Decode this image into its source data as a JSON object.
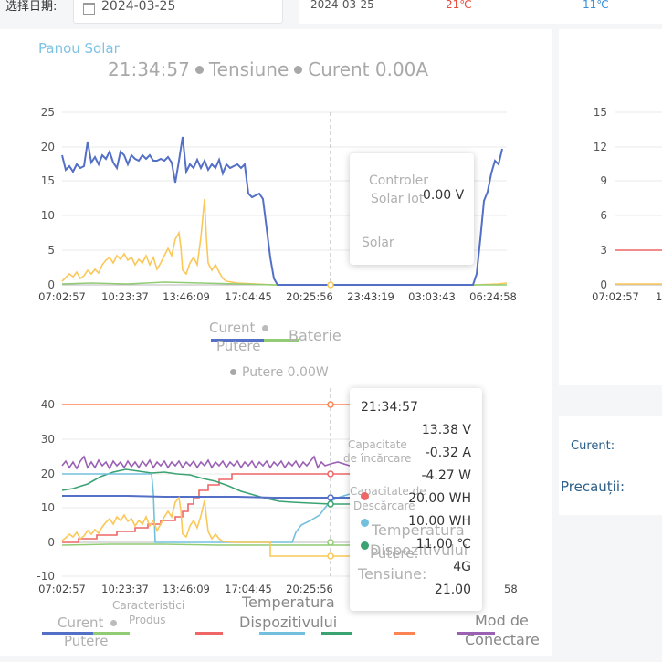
{
  "header": {
    "date_label": "选择日期:",
    "date_value": "2024-03-25",
    "summary_date": "2024-03-25",
    "temp_high": "21℃",
    "temp_low": "11℃"
  },
  "tabs": {
    "active": "Panou Solar"
  },
  "chart1": {
    "title_time": "21:34:57",
    "title_part2": "Tensiune",
    "title_part3": "Curent 0.00A",
    "y_ticks": [
      "25",
      "20",
      "15",
      "10",
      "5",
      "0"
    ],
    "x_ticks": [
      "07:02:57",
      "10:23:37",
      "13:46:09",
      "17:04:45",
      "20:25:56",
      "23:43:19",
      "03:03:43",
      "06:24:58"
    ],
    "tooltip": {
      "label1": "Controler",
      "label2": "Solar Iot",
      "value": "0.00 V",
      "label3": "Solar"
    },
    "legend": {
      "current": "Curent",
      "power": "Putere",
      "battery": "Baterie"
    },
    "power_note": "Putere 0.00W"
  },
  "chart1b": {
    "y_ticks": [
      "15",
      "12",
      "9",
      "6",
      "3",
      "0"
    ],
    "x_tick": "07:02:57",
    "x_tick_partial": "1"
  },
  "chart2": {
    "y_ticks": [
      "40",
      "30",
      "20",
      "10",
      "0",
      "-10"
    ],
    "x_ticks": [
      "07:02:57",
      "10:23:37",
      "13:46:09",
      "17:04:45",
      "20:25:56"
    ],
    "x_tick_partial": "58",
    "tooltip": {
      "time": "21:34:57",
      "voltage": "13.38 V",
      "charge_cap_label1": "Capacitate",
      "charge_cap_label2": "de încărcare",
      "current": "-0.32 A",
      "power": "-4.27 W",
      "discharge_cap_label1": "Capacitate de",
      "discharge_cap_label2": "Descărcare",
      "charge_wh": "20.00 WH",
      "temp_label1": "Temperatura",
      "temp_label2": "Dispozitivului",
      "discharge_wh": "10.00 WH",
      "power_label": "Putere:",
      "temp_value": "11.00 ℃",
      "voltage_label": "Tensiune:",
      "network": "4G",
      "last_value": "21.00"
    },
    "legend": {
      "product": "Caracteristici",
      "product2": "Produs",
      "temp1": "Temperatura",
      "temp2": "Dispozitivului",
      "current": "Curent",
      "power": "Putere",
      "mode1": "Mod de",
      "mode2": "Conectare"
    }
  },
  "side_panel": {
    "current_label": "Curent:",
    "warning_label": "Precauții:"
  },
  "colors": {
    "current": "#5470c6",
    "power": "#91cc75",
    "battery": "#fac858",
    "temperature": "#ee6666",
    "charge": "#73c0de",
    "discharge": "#3ba272",
    "orange": "#fc8452",
    "purple": "#9a60b4"
  }
}
